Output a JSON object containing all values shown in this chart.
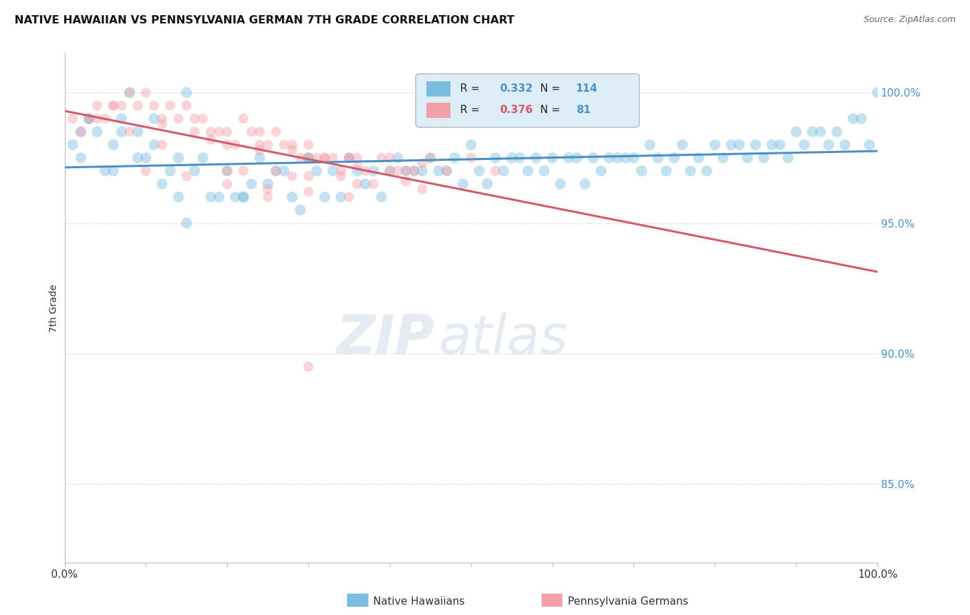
{
  "title": "NATIVE HAWAIIAN VS PENNSYLVANIA GERMAN 7TH GRADE CORRELATION CHART",
  "source": "Source: ZipAtlas.com",
  "ylabel": "7th Grade",
  "ylabel_right_labels": [
    "100.0%",
    "95.0%",
    "90.0%",
    "85.0%"
  ],
  "ylabel_right_values": [
    1.0,
    0.95,
    0.9,
    0.85
  ],
  "xlim": [
    0.0,
    1.0
  ],
  "ylim": [
    0.82,
    1.015
  ],
  "R_blue": 0.332,
  "N_blue": 114,
  "R_pink": 0.376,
  "N_pink": 81,
  "blue_color": "#7bbde0",
  "pink_color": "#f4a0a8",
  "trend_blue": "#4a90c4",
  "trend_pink": "#d45a6a",
  "watermark_zip": "ZIP",
  "watermark_atlas": "atlas",
  "blue_scatter_x": [
    0.01,
    0.02,
    0.03,
    0.04,
    0.05,
    0.06,
    0.07,
    0.08,
    0.09,
    0.1,
    0.11,
    0.12,
    0.13,
    0.14,
    0.15,
    0.16,
    0.17,
    0.18,
    0.2,
    0.21,
    0.22,
    0.24,
    0.25,
    0.27,
    0.28,
    0.3,
    0.31,
    0.32,
    0.33,
    0.35,
    0.36,
    0.37,
    0.38,
    0.4,
    0.41,
    0.42,
    0.43,
    0.44,
    0.45,
    0.46,
    0.47,
    0.48,
    0.5,
    0.51,
    0.53,
    0.54,
    0.55,
    0.56,
    0.57,
    0.58,
    0.6,
    0.62,
    0.63,
    0.65,
    0.67,
    0.68,
    0.7,
    0.72,
    0.73,
    0.75,
    0.76,
    0.78,
    0.8,
    0.82,
    0.83,
    0.85,
    0.87,
    0.88,
    0.9,
    0.92,
    0.93,
    0.95,
    0.97,
    0.98,
    1.0,
    0.03,
    0.06,
    0.09,
    0.14,
    0.19,
    0.23,
    0.26,
    0.29,
    0.34,
    0.39,
    0.49,
    0.52,
    0.59,
    0.61,
    0.64,
    0.66,
    0.69,
    0.71,
    0.74,
    0.77,
    0.79,
    0.81,
    0.84,
    0.86,
    0.89,
    0.91,
    0.94,
    0.96,
    0.99,
    0.02,
    0.07,
    0.11,
    0.15,
    0.22,
    0.3,
    0.38,
    0.46,
    0.55,
    0.64
  ],
  "blue_scatter_y": [
    0.98,
    0.975,
    0.99,
    0.985,
    0.97,
    0.98,
    0.99,
    1.0,
    0.985,
    0.975,
    0.98,
    0.965,
    0.97,
    0.975,
    0.95,
    0.97,
    0.975,
    0.96,
    0.97,
    0.96,
    0.96,
    0.975,
    0.965,
    0.97,
    0.96,
    0.975,
    0.97,
    0.96,
    0.97,
    0.975,
    0.97,
    0.965,
    0.97,
    0.97,
    0.975,
    0.97,
    0.97,
    0.97,
    0.975,
    0.97,
    0.97,
    0.975,
    0.98,
    0.97,
    0.975,
    0.97,
    0.975,
    0.975,
    0.97,
    0.975,
    0.975,
    0.975,
    0.975,
    0.975,
    0.975,
    0.975,
    0.975,
    0.98,
    0.975,
    0.975,
    0.98,
    0.975,
    0.98,
    0.98,
    0.98,
    0.98,
    0.98,
    0.98,
    0.985,
    0.985,
    0.985,
    0.985,
    0.99,
    0.99,
    1.0,
    0.99,
    0.97,
    0.975,
    0.96,
    0.96,
    0.965,
    0.97,
    0.955,
    0.96,
    0.96,
    0.965,
    0.965,
    0.97,
    0.965,
    0.965,
    0.97,
    0.975,
    0.97,
    0.97,
    0.97,
    0.97,
    0.975,
    0.975,
    0.975,
    0.975,
    0.98,
    0.98,
    0.98,
    0.98,
    0.985,
    0.985,
    0.99,
    1.0,
    0.96,
    0.975
  ],
  "pink_scatter_x": [
    0.01,
    0.02,
    0.03,
    0.04,
    0.05,
    0.06,
    0.07,
    0.08,
    0.09,
    0.1,
    0.11,
    0.12,
    0.13,
    0.14,
    0.15,
    0.16,
    0.17,
    0.18,
    0.19,
    0.2,
    0.21,
    0.22,
    0.23,
    0.24,
    0.25,
    0.26,
    0.27,
    0.28,
    0.29,
    0.3,
    0.31,
    0.32,
    0.33,
    0.34,
    0.35,
    0.37,
    0.39,
    0.41,
    0.43,
    0.45,
    0.47,
    0.5,
    0.53,
    0.04,
    0.08,
    0.12,
    0.16,
    0.2,
    0.24,
    0.28,
    0.32,
    0.36,
    0.4,
    0.44,
    0.06,
    0.12,
    0.18,
    0.24,
    0.3,
    0.36,
    0.42,
    0.25,
    0.3,
    0.35,
    0.4,
    0.1,
    0.15,
    0.2,
    0.25,
    0.3,
    0.35,
    0.26,
    0.34,
    0.42,
    0.2,
    0.28,
    0.36,
    0.44,
    0.22,
    0.3,
    0.38
  ],
  "pink_scatter_y": [
    0.99,
    0.985,
    0.99,
    0.995,
    0.99,
    0.995,
    0.995,
    1.0,
    0.995,
    1.0,
    0.995,
    0.99,
    0.995,
    0.99,
    0.995,
    0.99,
    0.99,
    0.985,
    0.985,
    0.985,
    0.98,
    0.99,
    0.985,
    0.985,
    0.98,
    0.985,
    0.98,
    0.98,
    0.975,
    0.98,
    0.975,
    0.975,
    0.975,
    0.97,
    0.975,
    0.97,
    0.975,
    0.97,
    0.97,
    0.975,
    0.97,
    0.975,
    0.97,
    0.99,
    0.985,
    0.98,
    0.985,
    0.98,
    0.98,
    0.978,
    0.975,
    0.975,
    0.975,
    0.973,
    0.995,
    0.988,
    0.982,
    0.978,
    0.975,
    0.972,
    0.97,
    0.96,
    0.895,
    0.975,
    0.97,
    0.97,
    0.968,
    0.965,
    0.963,
    0.962,
    0.96,
    0.97,
    0.968,
    0.966,
    0.97,
    0.968,
    0.965,
    0.963,
    0.97,
    0.968,
    0.965
  ],
  "blue_size": 130,
  "pink_size": 110,
  "blue_alpha": 0.45,
  "pink_alpha": 0.45,
  "grid_color": "#cccccc",
  "grid_alpha": 0.6,
  "background_color": "#ffffff",
  "fig_width": 14.06,
  "fig_height": 8.92
}
